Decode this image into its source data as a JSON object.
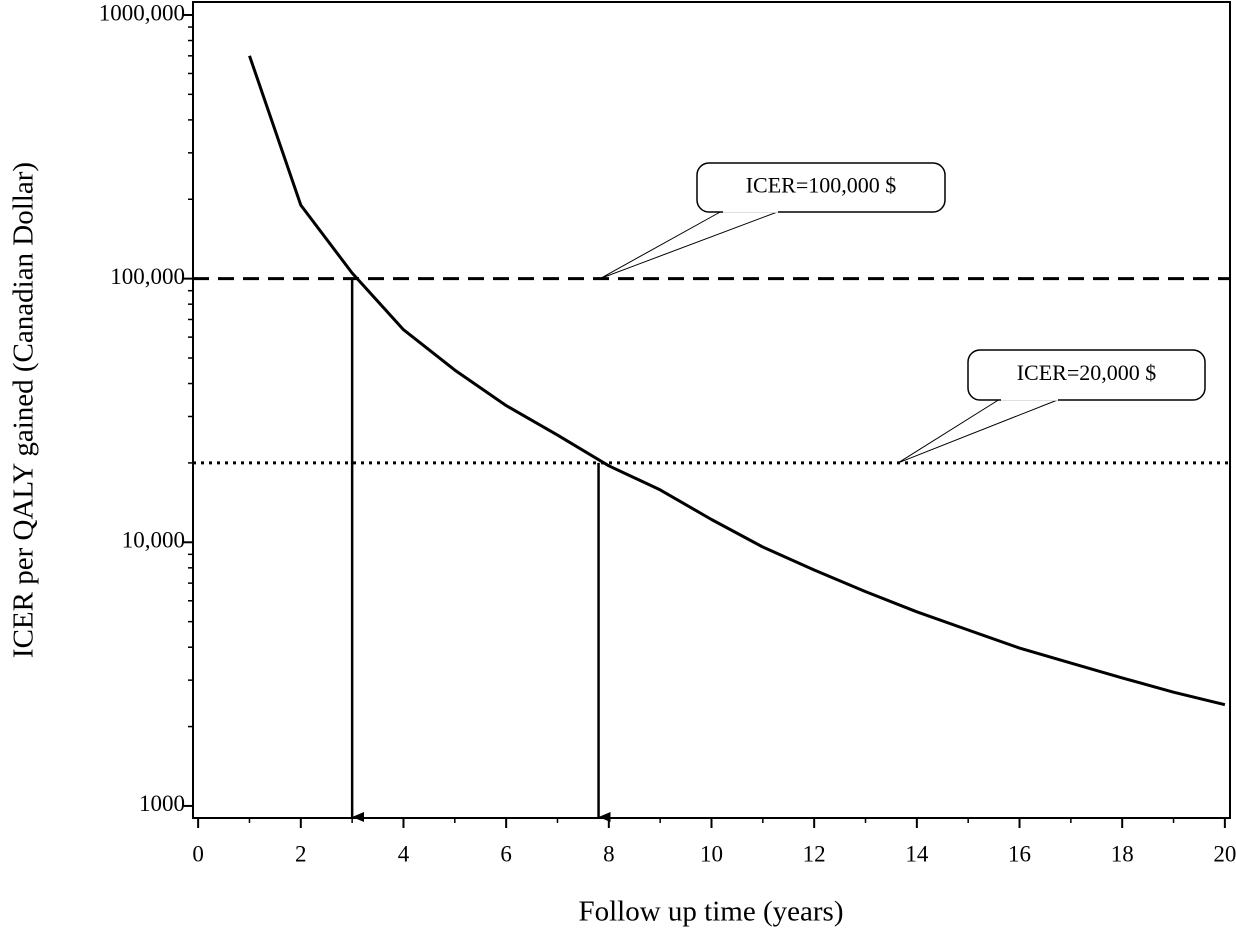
{
  "chart_data": {
    "type": "line",
    "xlabel": "Follow up time (years)",
    "ylabel": "ICER per QALY gained (Canadian Dollar)",
    "log_y": true,
    "color": "#000000",
    "x": [
      1,
      2,
      3,
      4,
      5,
      6,
      7,
      8,
      9,
      10,
      11,
      12,
      13,
      14,
      15,
      16,
      17,
      18,
      19,
      20
    ],
    "values": [
      700000,
      190000,
      105000,
      64000,
      45000,
      33000,
      25500,
      19500,
      15800,
      12200,
      9600,
      7850,
      6500,
      5450,
      4650,
      3970,
      3480,
      3060,
      2700,
      2420
    ],
    "xlim": [
      -0.1,
      20.1
    ],
    "ylim": [
      900,
      1120000
    ],
    "xticks": [
      0,
      2,
      4,
      6,
      8,
      10,
      12,
      14,
      16,
      18,
      20
    ],
    "xminor_ticks": [
      1,
      3,
      5,
      7,
      9,
      11,
      13,
      15,
      17,
      19
    ],
    "yticks": [
      1000,
      {
        "value": 10000,
        "label": "10,000"
      },
      {
        "value": 100000,
        "label": "100,000"
      },
      {
        "value": 1000000,
        "label": "1000,000"
      }
    ],
    "yminor_ticks": [
      2000,
      3000,
      4000,
      5000,
      6000,
      7000,
      8000,
      9000,
      20000,
      30000,
      40000,
      50000,
      60000,
      70000,
      80000,
      90000,
      200000,
      300000,
      400000,
      500000,
      600000,
      700000,
      800000,
      900000
    ],
    "reference_lines": [
      {
        "value": 100000,
        "label": "ICER=100,000 $",
        "style": "dashed"
      },
      {
        "value": 20000,
        "label": "ICER=20,000 $",
        "style": "dotted"
      }
    ],
    "drop_arrows": [
      3,
      7.8
    ]
  }
}
